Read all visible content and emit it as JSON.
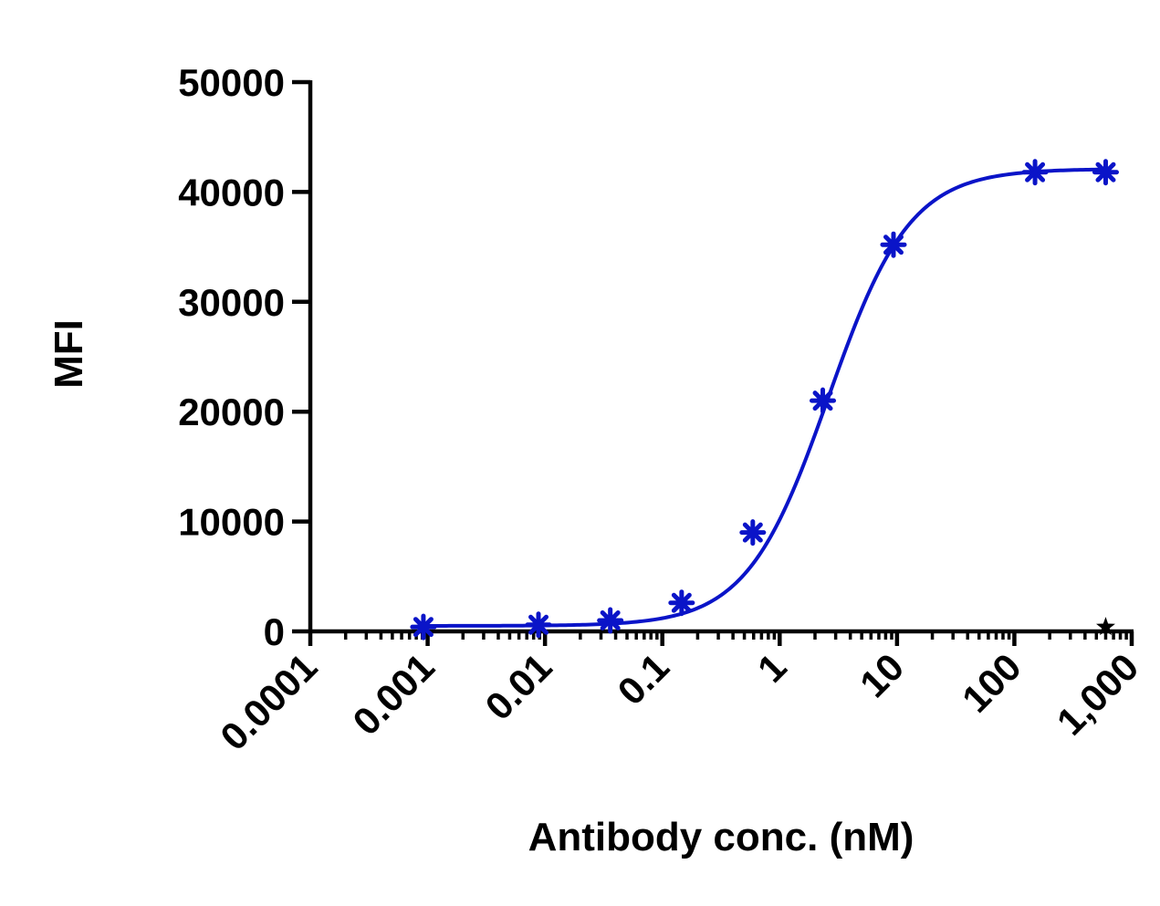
{
  "chart_data": {
    "type": "scatter",
    "xlabel": "Antibody conc. (nM)",
    "ylabel": "MFI",
    "x_scale": "log",
    "xlim": [
      0.0001,
      1000
    ],
    "ylim": [
      0,
      50000
    ],
    "grid": false,
    "x_ticks": [
      {
        "value": 0.0001,
        "label": "0.0001"
      },
      {
        "value": 0.001,
        "label": "0.001"
      },
      {
        "value": 0.01,
        "label": "0.01"
      },
      {
        "value": 0.1,
        "label": "0.1"
      },
      {
        "value": 1,
        "label": "1"
      },
      {
        "value": 10,
        "label": "10"
      },
      {
        "value": 100,
        "label": "100"
      },
      {
        "value": 1000,
        "label": "1,000"
      }
    ],
    "y_ticks": [
      {
        "value": 0,
        "label": "0"
      },
      {
        "value": 10000,
        "label": "10000"
      },
      {
        "value": 20000,
        "label": "20000"
      },
      {
        "value": 30000,
        "label": "30000"
      },
      {
        "value": 40000,
        "label": "40000"
      },
      {
        "value": 50000,
        "label": "50000"
      }
    ],
    "series": [
      {
        "color": "#0a14c8",
        "marker": "asterisk",
        "points": [
          {
            "x": 0.00092,
            "y": 400
          },
          {
            "x": 0.0088,
            "y": 600
          },
          {
            "x": 0.036,
            "y": 1000
          },
          {
            "x": 0.146,
            "y": 2600
          },
          {
            "x": 0.59,
            "y": 9000
          },
          {
            "x": 2.33,
            "y": 21000
          },
          {
            "x": 9.33,
            "y": 35200
          },
          {
            "x": 150,
            "y": 41800
          },
          {
            "x": 600,
            "y": 41800
          }
        ],
        "fit": {
          "bottom": 500,
          "top": 42100,
          "ec50": 2.6,
          "hill": 1.25
        }
      },
      {
        "color": "#000000",
        "marker": "star",
        "points": [
          {
            "x": 600,
            "y": 400
          }
        ]
      }
    ]
  }
}
